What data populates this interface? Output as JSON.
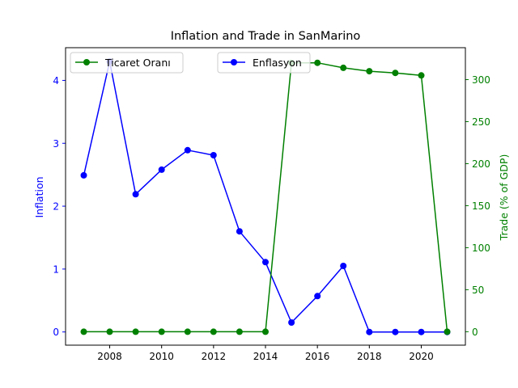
{
  "chart_data": {
    "type": "line",
    "title": "Inflation and Trade in SanMarino",
    "x": [
      2007,
      2008,
      2009,
      2010,
      2011,
      2012,
      2013,
      2014,
      2015,
      2016,
      2017,
      2018,
      2019,
      2020,
      2021
    ],
    "x_ticks": [
      2008,
      2010,
      2012,
      2014,
      2016,
      2018,
      2020
    ],
    "xlim": [
      2006.3,
      2021.7
    ],
    "left_axis": {
      "label": "Inflation",
      "color": "#0000ff",
      "ylim": [
        -0.21,
        4.52
      ],
      "ticks": [
        0,
        1,
        2,
        3,
        4
      ]
    },
    "right_axis": {
      "label": "Trade (% of GDP)",
      "color": "#008000",
      "ylim": [
        -16,
        338
      ],
      "ticks": [
        0,
        50,
        100,
        150,
        200,
        250,
        300
      ]
    },
    "series": [
      {
        "name": "Enflasyon",
        "axis": "left",
        "color": "#0000ff",
        "values": [
          2.49,
          4.3,
          2.19,
          2.58,
          2.89,
          2.81,
          1.6,
          1.11,
          0.15,
          0.57,
          1.05,
          0.0,
          0.0,
          0.0,
          0.0
        ]
      },
      {
        "name": "Ticaret Oranı",
        "axis": "right",
        "color": "#008000",
        "values": [
          0,
          0,
          0,
          0,
          0,
          0,
          0,
          0,
          320,
          320,
          314,
          310,
          308,
          305,
          0
        ]
      }
    ],
    "legends": [
      {
        "series": "Ticaret Oranı",
        "placement": "upper-left"
      },
      {
        "series": "Enflasyon",
        "placement": "upper-center"
      }
    ],
    "grid": false
  }
}
